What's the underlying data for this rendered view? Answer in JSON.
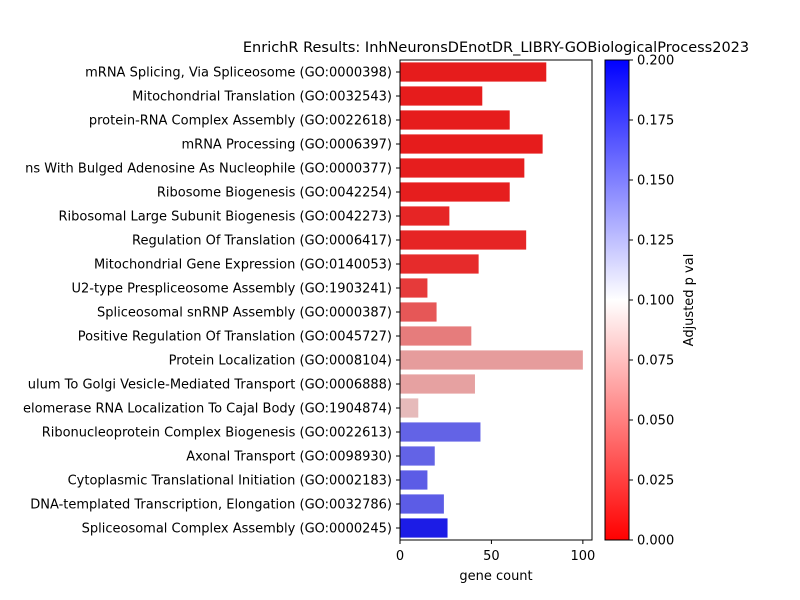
{
  "chart_data": {
    "type": "bar",
    "orientation": "horizontal",
    "title": "EnrichR Results: InhNeuronsDEnotDR_LIBRY-GOBiologicalProcess2023",
    "xlabel": "gene count",
    "ylabel": "",
    "xlim": [
      0,
      105
    ],
    "xticks": [
      0,
      50,
      100
    ],
    "grid": false,
    "categories": [
      "mRNA Splicing, Via Spliceosome (GO:0000398)",
      "Mitochondrial Translation (GO:0032543)",
      "protein-RNA Complex Assembly (GO:0022618)",
      "mRNA Processing (GO:0006397)",
      "ns With Bulged Adenosine As Nucleophile (GO:0000377)",
      "Ribosome Biogenesis (GO:0042254)",
      "Ribosomal Large Subunit Biogenesis (GO:0042273)",
      "Regulation Of Translation (GO:0006417)",
      "Mitochondrial Gene Expression (GO:0140053)",
      "U2-type Prespliceosome Assembly (GO:1903241)",
      "Spliceosomal snRNP Assembly (GO:0000387)",
      "Positive Regulation Of Translation (GO:0045727)",
      "Protein Localization (GO:0008104)",
      "ulum To Golgi Vesicle-Mediated Transport (GO:0006888)",
      "elomerase RNA Localization To Cajal Body (GO:1904874)",
      "Ribonucleoprotein Complex Biogenesis (GO:0022613)",
      "Axonal Transport (GO:0098930)",
      "Cytoplasmic Translational Initiation (GO:0002183)",
      "DNA-templated Transcription, Elongation (GO:0032786)",
      "Spliceosomal Complex Assembly (GO:0000245)"
    ],
    "values": [
      80,
      45,
      60,
      78,
      68,
      60,
      27,
      69,
      43,
      15,
      20,
      39,
      100,
      41,
      10,
      44,
      19,
      15,
      24,
      26
    ],
    "adjusted_p": [
      0.012,
      0.012,
      0.012,
      0.012,
      0.013,
      0.013,
      0.016,
      0.016,
      0.019,
      0.025,
      0.038,
      0.054,
      0.068,
      0.07,
      0.081,
      0.157,
      0.157,
      0.16,
      0.16,
      0.188
    ],
    "colorbar": {
      "label": "Adjusted p val",
      "range": [
        0.0,
        0.2
      ],
      "ticks": [
        0.0,
        0.025,
        0.05,
        0.075,
        0.1,
        0.125,
        0.15,
        0.175,
        0.2
      ],
      "tick_labels": [
        "0.000",
        "0.025",
        "0.050",
        "0.075",
        "0.100",
        "0.125",
        "0.150",
        "0.175",
        "0.200"
      ],
      "colormap": [
        "#ff0000",
        "#ffffff",
        "#0000ff"
      ]
    }
  }
}
